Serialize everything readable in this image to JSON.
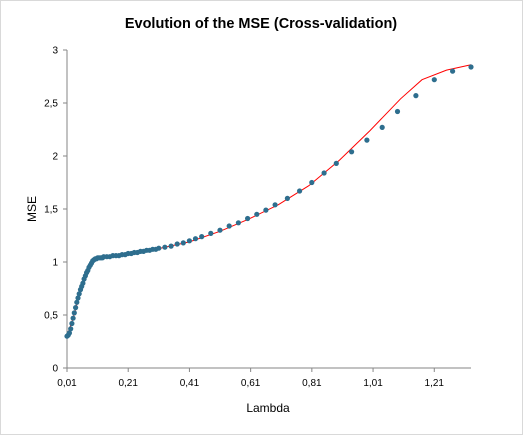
{
  "chart_data": {
    "type": "scatter",
    "title": "Evolution of the MSE (Cross-validation)",
    "xlabel": "Lambda",
    "ylabel": "MSE",
    "xlim": [
      0.01,
      1.33
    ],
    "ylim": [
      0,
      3
    ],
    "xticks": [
      "0,01",
      "0,21",
      "0,41",
      "0,61",
      "0,81",
      "1,01",
      "1,21"
    ],
    "yticks": [
      "0",
      "0,5",
      "1",
      "1,5",
      "2",
      "2,5",
      "3"
    ],
    "grid": false,
    "legend": "none",
    "colors": {
      "points": "#2e6e8e",
      "line": "#ff0000"
    },
    "series": [
      {
        "type": "scatter",
        "x": [
          0.01,
          0.014,
          0.018,
          0.022,
          0.026,
          0.03,
          0.034,
          0.038,
          0.042,
          0.046,
          0.05,
          0.054,
          0.058,
          0.062,
          0.066,
          0.07,
          0.074,
          0.078,
          0.082,
          0.086,
          0.09,
          0.094,
          0.098,
          0.102,
          0.106,
          0.11,
          0.114,
          0.118,
          0.122,
          0.126,
          0.13,
          0.14,
          0.15,
          0.16,
          0.17,
          0.18,
          0.19,
          0.2,
          0.21,
          0.22,
          0.23,
          0.24,
          0.25,
          0.26,
          0.27,
          0.28,
          0.29,
          0.3,
          0.31,
          0.33,
          0.35,
          0.37,
          0.39,
          0.41,
          0.43,
          0.45,
          0.48,
          0.51,
          0.54,
          0.57,
          0.6,
          0.63,
          0.66,
          0.69,
          0.73,
          0.77,
          0.81,
          0.85,
          0.89,
          0.94,
          0.99,
          1.04,
          1.09,
          1.15,
          1.21,
          1.27,
          1.33
        ],
        "y": [
          0.3,
          0.31,
          0.33,
          0.37,
          0.42,
          0.47,
          0.52,
          0.57,
          0.62,
          0.66,
          0.7,
          0.74,
          0.77,
          0.8,
          0.84,
          0.87,
          0.9,
          0.92,
          0.95,
          0.97,
          0.99,
          1.01,
          1.02,
          1.03,
          1.03,
          1.04,
          1.04,
          1.04,
          1.04,
          1.04,
          1.05,
          1.05,
          1.05,
          1.06,
          1.06,
          1.06,
          1.07,
          1.07,
          1.08,
          1.08,
          1.09,
          1.09,
          1.1,
          1.1,
          1.11,
          1.11,
          1.12,
          1.12,
          1.13,
          1.14,
          1.15,
          1.17,
          1.18,
          1.2,
          1.22,
          1.24,
          1.27,
          1.3,
          1.34,
          1.37,
          1.41,
          1.45,
          1.49,
          1.54,
          1.6,
          1.67,
          1.75,
          1.84,
          1.93,
          2.04,
          2.15,
          2.27,
          2.42,
          2.57,
          2.72,
          2.8,
          2.84
        ]
      },
      {
        "type": "line",
        "x": [
          0.01,
          0.03,
          0.06,
          0.09,
          0.11,
          0.15,
          0.2,
          0.3,
          0.41,
          0.51,
          0.6,
          0.7,
          0.8,
          0.9,
          1.0,
          1.1,
          1.17,
          1.25,
          1.33
        ],
        "y": [
          0.3,
          0.47,
          0.79,
          1.0,
          1.04,
          1.05,
          1.07,
          1.12,
          1.19,
          1.29,
          1.4,
          1.54,
          1.72,
          1.96,
          2.24,
          2.54,
          2.72,
          2.81,
          2.86
        ]
      }
    ]
  }
}
